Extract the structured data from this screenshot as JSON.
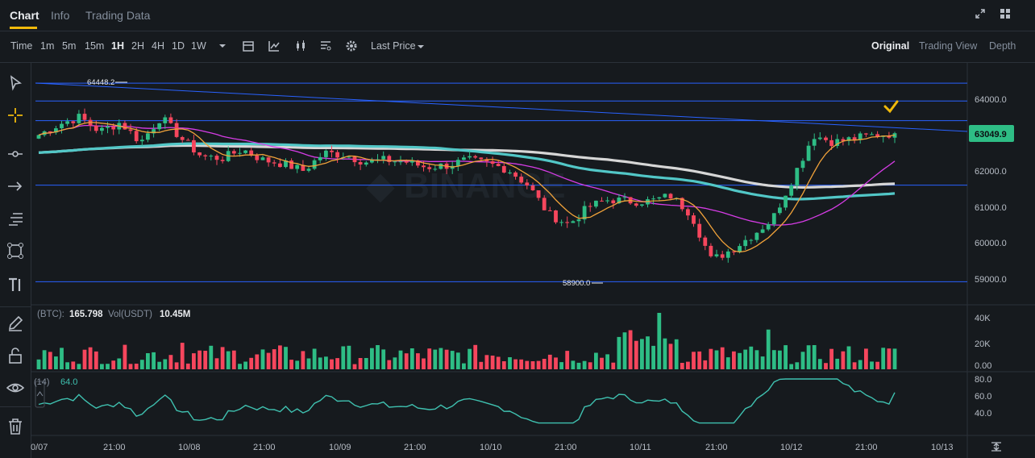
{
  "tabs": [
    {
      "label": "Chart"
    },
    {
      "label": "Info"
    },
    {
      "label": "Trading Data"
    }
  ],
  "toolbar": {
    "time_label": "Time",
    "intervals": [
      "1m",
      "5m",
      "15m",
      "1H",
      "2H",
      "4H",
      "1D",
      "1W"
    ],
    "active_interval": "1H",
    "price_type": "Last Price",
    "views": [
      "Original",
      "Trading View",
      "Depth"
    ],
    "active_view": "Original"
  },
  "price_axis": {
    "ticks": [
      "64000.0",
      "63000.0",
      "62000.0",
      "61000.0",
      "60000.0",
      "59000.0"
    ],
    "current_price": "63049.9",
    "current_price_color": "#2ebd85"
  },
  "annotations": {
    "high_label": "64448.2",
    "low_label": "58900.0"
  },
  "volume": {
    "btc_prefix": "(BTC):",
    "btc_value": "165.798",
    "usdt_prefix": "Vol(USDT)",
    "usdt_value": "10.45M",
    "ticks": [
      "40K",
      "20K",
      "0.00"
    ]
  },
  "rsi": {
    "label": "(14)",
    "value": "64.0",
    "ticks": [
      "80.0",
      "60.0",
      "40.0"
    ]
  },
  "time_axis": {
    "labels": [
      "0/07",
      "21:00",
      "10/08",
      "21:00",
      "10/09",
      "21:00",
      "10/10",
      "21:00",
      "10/11",
      "21:00",
      "10/12",
      "21:00",
      "10/13"
    ]
  },
  "colors": {
    "up": "#2ebd85",
    "down": "#f6465d",
    "accent": "#f0b90b",
    "line_blue": "#2962ff",
    "ma_orange": "#f0a23a",
    "ma_pink": "#d63ce6",
    "ma_teal": "#52c7c7",
    "ma_white": "#d6d6d6"
  },
  "sidebar_icons": [
    "cursor-icon",
    "crosshair-icon",
    "line-icon",
    "arrow-icon",
    "fib-icon",
    "shape-icon",
    "text-icon",
    "pencil-icon",
    "lock-icon",
    "eye-icon",
    "trash-icon"
  ],
  "chart_data": {
    "type": "candlestick",
    "symbol_axis": "price",
    "ylim": [
      58900,
      64448.2
    ],
    "high": 64448.2,
    "low": 58900.0,
    "last": 63049.9,
    "horizontal_levels": [
      64448.2,
      63950,
      63400,
      61600,
      58900
    ],
    "x_labels": [
      "0/07",
      "21:00",
      "10/08",
      "21:00",
      "10/09",
      "21:00",
      "10/10",
      "21:00",
      "10/11",
      "21:00",
      "10/12",
      "21:00",
      "10/13"
    ],
    "close_path": [
      63000,
      63300,
      63500,
      63100,
      63350,
      62800,
      63500,
      62900,
      62400,
      62350,
      62600,
      62300,
      62200,
      62000,
      62500,
      62450,
      62250,
      62300,
      62250,
      62100,
      62150,
      62300,
      62200,
      62050,
      61600,
      60800,
      60500,
      61000,
      61200,
      61150,
      61150,
      61300,
      60800,
      59500,
      59800,
      60200,
      60650,
      61800,
      63000,
      62800,
      62900,
      63000,
      63050
    ],
    "volume_ylim": [
      0,
      40000
    ],
    "rsi_ylim": [
      30,
      80
    ],
    "rsi_last": 64.0
  }
}
